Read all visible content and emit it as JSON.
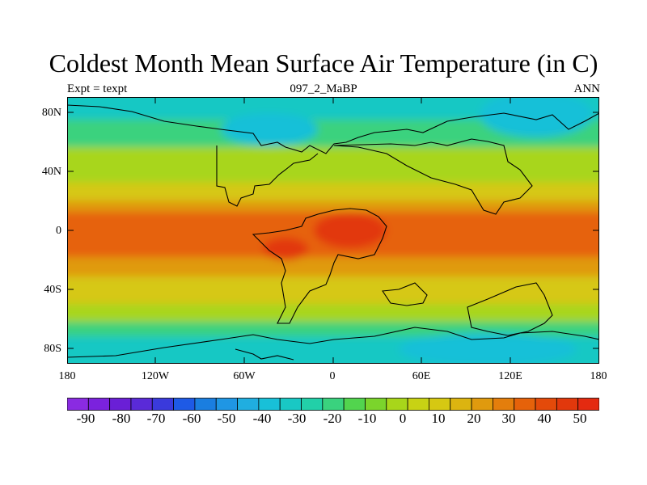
{
  "title": "Coldest Month Mean Surface Air Temperature (in C)",
  "left_label": "Expt = texpt",
  "center_label": "097_2_MaBP",
  "right_label": "ANN",
  "lat_labels": [
    "80N",
    "40N",
    "0",
    "40S",
    "80S"
  ],
  "lon_labels": [
    "180",
    "120W",
    "60W",
    "0",
    "60E",
    "120E",
    "180"
  ],
  "colorbar": {
    "labels": [
      "-90",
      "-80",
      "-70",
      "-60",
      "-50",
      "-40",
      "-30",
      "-20",
      "-10",
      "0",
      "10",
      "20",
      "30",
      "40",
      "50"
    ],
    "colors": [
      "#8a2be2",
      "#7b22dd",
      "#6a1fd6",
      "#5a2ad8",
      "#3a3adc",
      "#1e5ae6",
      "#1a7ee0",
      "#1f96e4",
      "#20aee0",
      "#18c0d8",
      "#19c8c4",
      "#22d0a8",
      "#3ad27e",
      "#52d44e",
      "#7bd42c",
      "#a8d61a",
      "#c8d214",
      "#d6c812",
      "#dcb410",
      "#e09a0e",
      "#e47e0c",
      "#e6620a",
      "#e44a0a",
      "#e2380c",
      "#e42a10"
    ]
  },
  "map_colors": {
    "polar": "#19c8c4",
    "subpolar_n": "#3ad27e",
    "mid": "#a8d61a",
    "subtrop": "#d6c812",
    "warm": "#e09a0e",
    "tropics": "#e6620a",
    "hot": "#e2380c",
    "cold_n": "#18c0d8"
  }
}
